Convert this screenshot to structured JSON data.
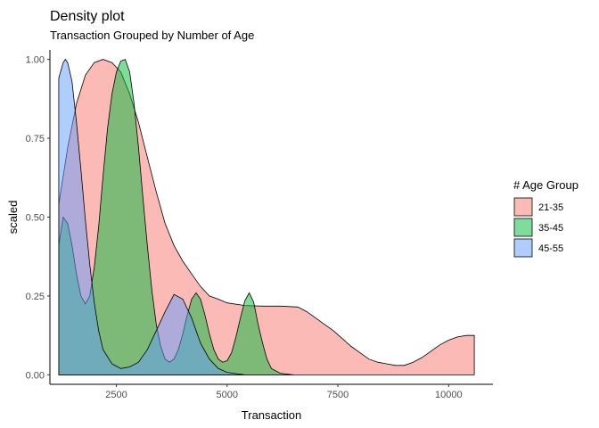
{
  "chart_data": {
    "type": "area",
    "title": "Density plot",
    "subtitle": "Transaction Grouped by Number of Age",
    "xlabel": "Transaction",
    "ylabel": "scaled",
    "xlim": [
      1000,
      11000
    ],
    "ylim": [
      -0.03,
      1.03
    ],
    "x_ticks": [
      2500,
      5000,
      7500,
      10000
    ],
    "x_tick_labels": [
      "2500",
      "5000",
      "7500",
      "10000"
    ],
    "y_ticks": [
      0,
      0.25,
      0.5,
      0.75,
      1
    ],
    "y_tick_labels": [
      "0.00",
      "0.25",
      "0.50",
      "0.75",
      "1.00"
    ],
    "grid": false,
    "legend": {
      "title": "# Age Group",
      "placement": "right",
      "entries": [
        "21-35",
        "35-45",
        "45-55"
      ]
    },
    "series": [
      {
        "name": "21-35",
        "color": "#F8766D",
        "points": [
          [
            1200,
            0.54
          ],
          [
            1400,
            0.72
          ],
          [
            1600,
            0.86
          ],
          [
            1800,
            0.95
          ],
          [
            2000,
            0.99
          ],
          [
            2200,
            1.0
          ],
          [
            2400,
            0.99
          ],
          [
            2600,
            0.96
          ],
          [
            2800,
            0.89
          ],
          [
            3000,
            0.8
          ],
          [
            3200,
            0.69
          ],
          [
            3400,
            0.58
          ],
          [
            3600,
            0.48
          ],
          [
            3800,
            0.41
          ],
          [
            4000,
            0.36
          ],
          [
            4200,
            0.32
          ],
          [
            4400,
            0.28
          ],
          [
            4600,
            0.25
          ],
          [
            4800,
            0.24
          ],
          [
            5000,
            0.228
          ],
          [
            5400,
            0.22
          ],
          [
            5800,
            0.218
          ],
          [
            6200,
            0.218
          ],
          [
            6600,
            0.215
          ],
          [
            6800,
            0.2
          ],
          [
            7000,
            0.18
          ],
          [
            7200,
            0.16
          ],
          [
            7400,
            0.14
          ],
          [
            7600,
            0.115
          ],
          [
            7800,
            0.09
          ],
          [
            8000,
            0.07
          ],
          [
            8200,
            0.05
          ],
          [
            8400,
            0.04
          ],
          [
            8600,
            0.035
          ],
          [
            8800,
            0.03
          ],
          [
            9000,
            0.03
          ],
          [
            9200,
            0.04
          ],
          [
            9400,
            0.055
          ],
          [
            9600,
            0.075
          ],
          [
            9800,
            0.095
          ],
          [
            10000,
            0.11
          ],
          [
            10200,
            0.12
          ],
          [
            10400,
            0.125
          ],
          [
            10580,
            0.125
          ]
        ]
      },
      {
        "name": "35-45",
        "color": "#00BA38",
        "points": [
          [
            1200,
            0.41
          ],
          [
            1300,
            0.5
          ],
          [
            1400,
            0.48
          ],
          [
            1500,
            0.41
          ],
          [
            1600,
            0.32
          ],
          [
            1700,
            0.25
          ],
          [
            1800,
            0.225
          ],
          [
            1900,
            0.25
          ],
          [
            2000,
            0.34
          ],
          [
            2100,
            0.47
          ],
          [
            2200,
            0.63
          ],
          [
            2300,
            0.78
          ],
          [
            2400,
            0.89
          ],
          [
            2500,
            0.96
          ],
          [
            2600,
            0.995
          ],
          [
            2700,
            1.0
          ],
          [
            2800,
            0.96
          ],
          [
            2900,
            0.86
          ],
          [
            3000,
            0.72
          ],
          [
            3100,
            0.56
          ],
          [
            3200,
            0.41
          ],
          [
            3300,
            0.27
          ],
          [
            3400,
            0.16
          ],
          [
            3500,
            0.09
          ],
          [
            3600,
            0.05
          ],
          [
            3700,
            0.04
          ],
          [
            3800,
            0.05
          ],
          [
            3900,
            0.08
          ],
          [
            4000,
            0.13
          ],
          [
            4100,
            0.19
          ],
          [
            4200,
            0.24
          ],
          [
            4300,
            0.26
          ],
          [
            4400,
            0.24
          ],
          [
            4500,
            0.19
          ],
          [
            4600,
            0.13
          ],
          [
            4700,
            0.08
          ],
          [
            4800,
            0.05
          ],
          [
            4900,
            0.04
          ],
          [
            5000,
            0.045
          ],
          [
            5100,
            0.07
          ],
          [
            5200,
            0.12
          ],
          [
            5300,
            0.18
          ],
          [
            5400,
            0.235
          ],
          [
            5500,
            0.26
          ],
          [
            5600,
            0.23
          ],
          [
            5700,
            0.16
          ],
          [
            5800,
            0.1
          ],
          [
            5900,
            0.05
          ],
          [
            6000,
            0.02
          ],
          [
            6200,
            0.005
          ],
          [
            6500,
            0.0
          ]
        ]
      },
      {
        "name": "45-55",
        "color": "#619CFF",
        "points": [
          [
            1200,
            0.94
          ],
          [
            1300,
            0.99
          ],
          [
            1350,
            1.0
          ],
          [
            1400,
            0.99
          ],
          [
            1500,
            0.93
          ],
          [
            1600,
            0.8
          ],
          [
            1700,
            0.65
          ],
          [
            1800,
            0.49
          ],
          [
            1900,
            0.35
          ],
          [
            2000,
            0.23
          ],
          [
            2100,
            0.14
          ],
          [
            2200,
            0.08
          ],
          [
            2400,
            0.035
          ],
          [
            2600,
            0.02
          ],
          [
            2800,
            0.025
          ],
          [
            3000,
            0.04
          ],
          [
            3200,
            0.08
          ],
          [
            3400,
            0.14
          ],
          [
            3600,
            0.2
          ],
          [
            3800,
            0.255
          ],
          [
            4000,
            0.24
          ],
          [
            4200,
            0.18
          ],
          [
            4400,
            0.1
          ],
          [
            4600,
            0.05
          ],
          [
            4800,
            0.02
          ],
          [
            5000,
            0.008
          ],
          [
            5400,
            0.0
          ]
        ]
      }
    ]
  }
}
